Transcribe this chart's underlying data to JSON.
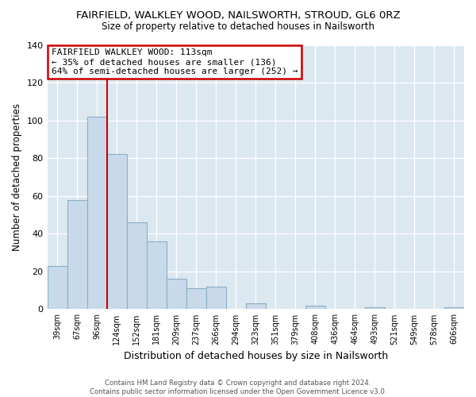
{
  "title": "FAIRFIELD, WALKLEY WOOD, NAILSWORTH, STROUD, GL6 0RZ",
  "subtitle": "Size of property relative to detached houses in Nailsworth",
  "xlabel": "Distribution of detached houses by size in Nailsworth",
  "ylabel": "Number of detached properties",
  "bar_color": "#c8daea",
  "bar_edge_color": "#8aaec8",
  "plot_bg_color": "#dce8f0",
  "fig_bg_color": "#ffffff",
  "grid_color": "#ffffff",
  "categories": [
    "39sqm",
    "67sqm",
    "96sqm",
    "124sqm",
    "152sqm",
    "181sqm",
    "209sqm",
    "237sqm",
    "266sqm",
    "294sqm",
    "323sqm",
    "351sqm",
    "379sqm",
    "408sqm",
    "436sqm",
    "464sqm",
    "493sqm",
    "521sqm",
    "549sqm",
    "578sqm",
    "606sqm"
  ],
  "values": [
    23,
    58,
    102,
    82,
    46,
    36,
    16,
    11,
    12,
    0,
    3,
    0,
    0,
    2,
    0,
    0,
    1,
    0,
    0,
    0,
    1
  ],
  "ylim": [
    0,
    140
  ],
  "yticks": [
    0,
    20,
    40,
    60,
    80,
    100,
    120,
    140
  ],
  "property_line_color": "#cc0000",
  "annotation_title": "FAIRFIELD WALKLEY WOOD: 113sqm",
  "annotation_line1": "← 35% of detached houses are smaller (136)",
  "annotation_line2": "64% of semi-detached houses are larger (252) →",
  "annotation_box_color": "#ffffff",
  "annotation_box_edge_color": "#cc0000",
  "footer_line1": "Contains HM Land Registry data © Crown copyright and database right 2024.",
  "footer_line2": "Contains public sector information licensed under the Open Government Licence v3.0."
}
